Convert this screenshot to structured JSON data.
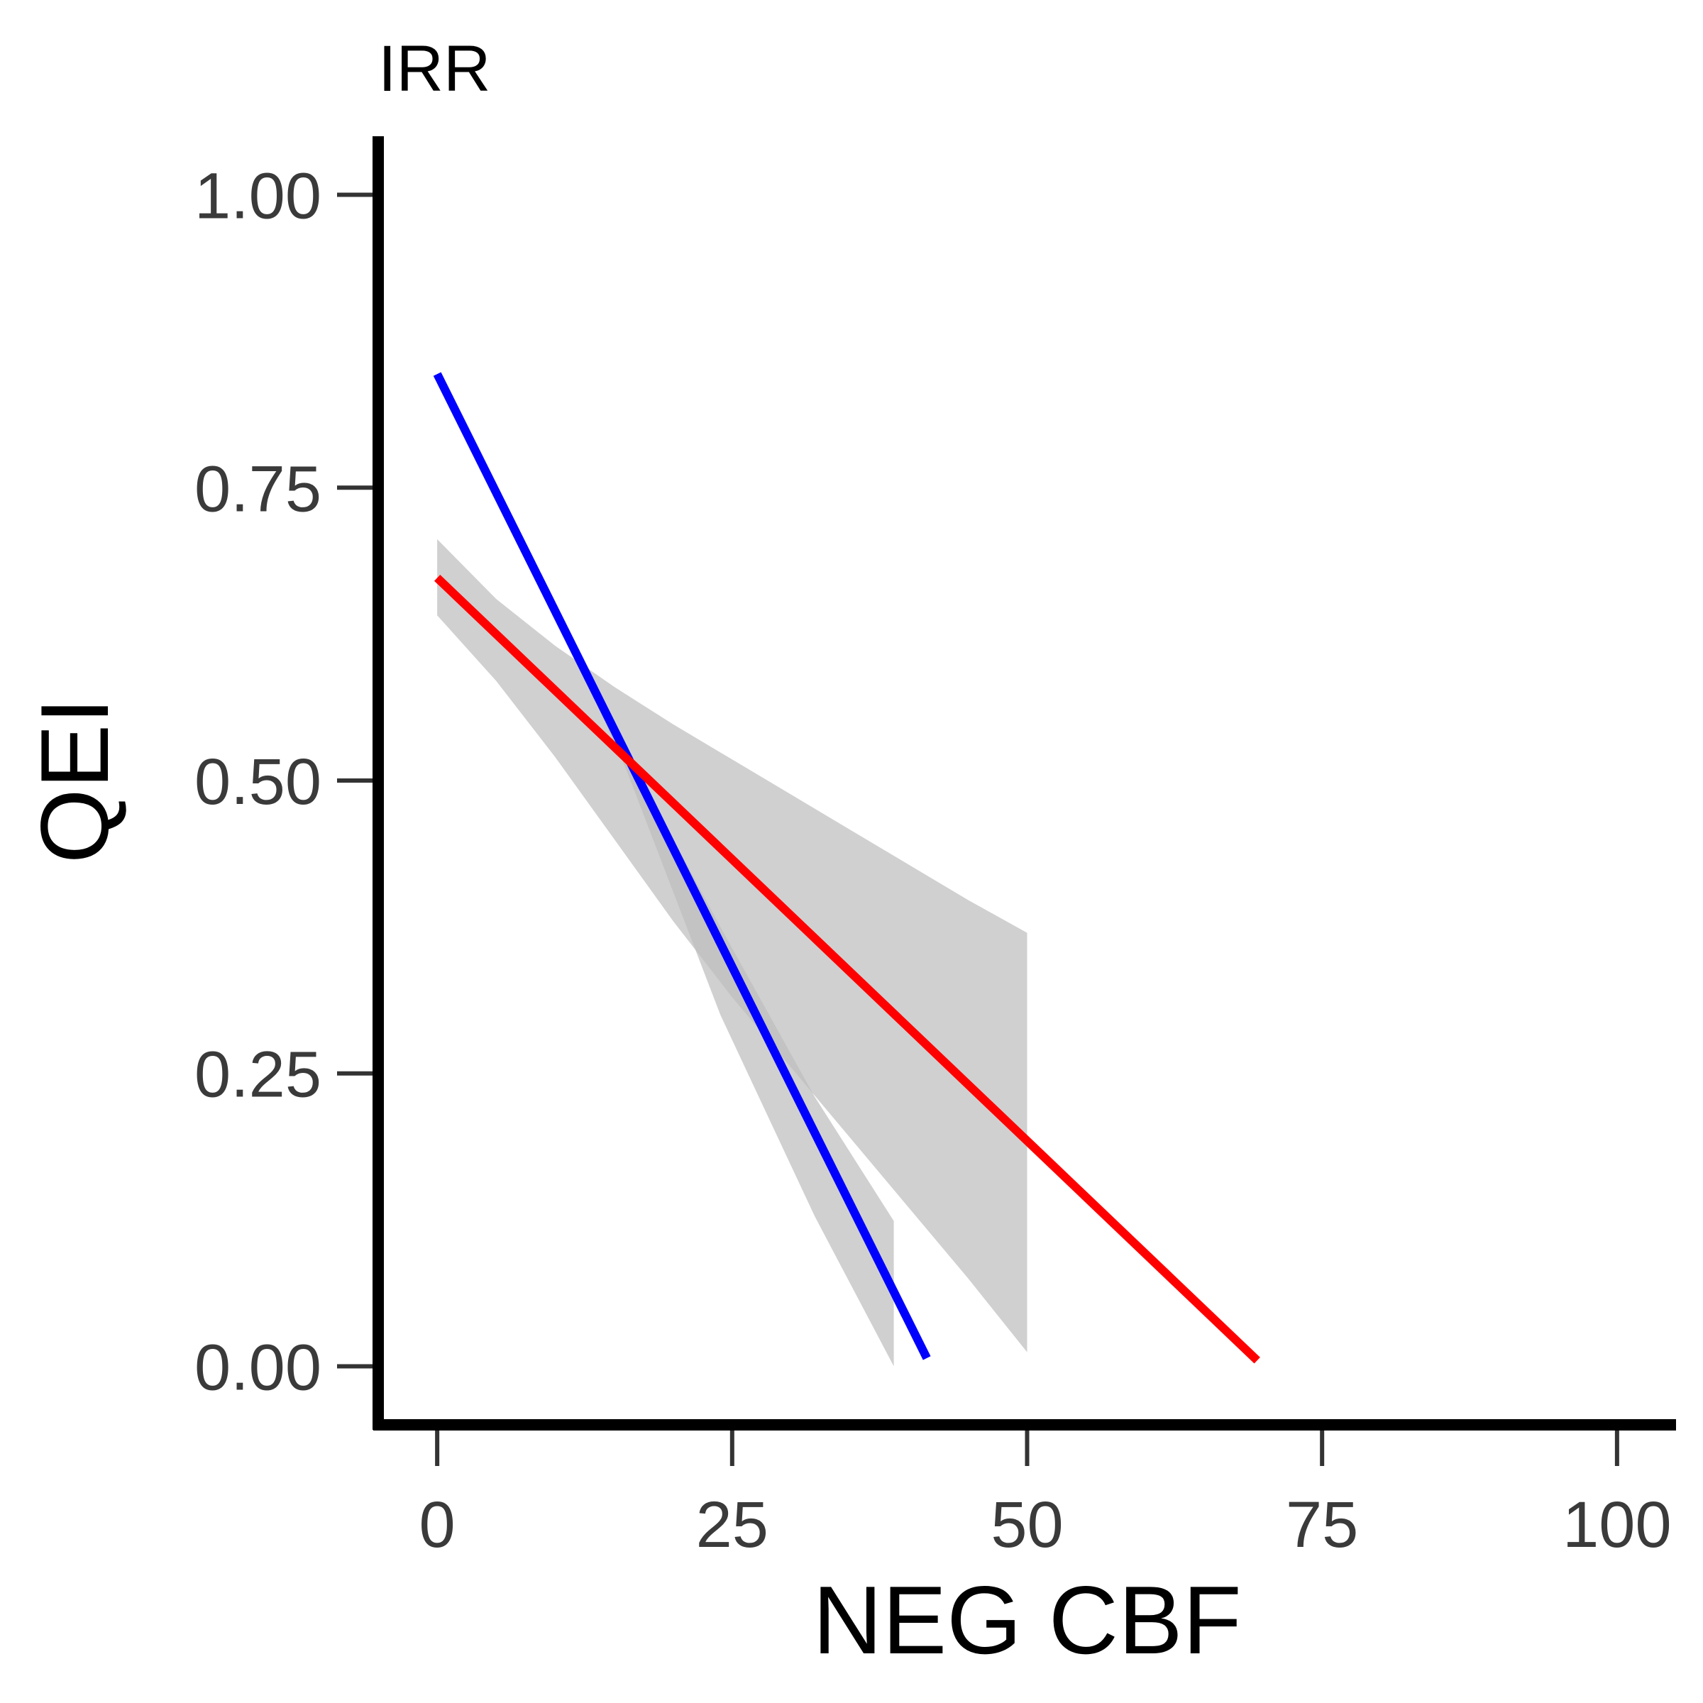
{
  "chart_data": {
    "type": "line",
    "title": "IRR",
    "xlabel": "NEG CBF",
    "ylabel": "QEI",
    "xlim": [
      -5,
      105
    ],
    "ylim": [
      -0.05,
      1.05
    ],
    "x_ticks": [
      0,
      25,
      50,
      75,
      100
    ],
    "x_tick_labels": [
      "0",
      "25",
      "50",
      "75",
      "100"
    ],
    "y_ticks": [
      0,
      0.25,
      0.5,
      0.75,
      1.0
    ],
    "y_tick_labels": [
      "0.00",
      "0.25",
      "0.50",
      "0.75",
      "1.00"
    ],
    "grid": false,
    "legend": "none",
    "series": [
      {
        "color": "#0000ff",
        "line": [
          [
            0,
            0.847
          ],
          [
            41.5,
            0.007
          ]
        ],
        "ci_band": {
          "color": "#bebebe",
          "x": [
            0,
            8,
            16,
            24,
            32,
            38.7
          ],
          "upper": [
            0.846,
            0.69,
            0.525,
            0.375,
            0.23,
            0.124
          ],
          "lower": [
            0.846,
            0.69,
            0.51,
            0.3,
            0.128,
            0.0
          ]
        }
      },
      {
        "color": "#ff0000",
        "line": [
          [
            0,
            0.673
          ],
          [
            69.5,
            0.005
          ]
        ],
        "ci_band": {
          "color": "#bebebe",
          "x": [
            0,
            5,
            10,
            15,
            20,
            25,
            30,
            35,
            40,
            45,
            50
          ],
          "upper": [
            0.706,
            0.655,
            0.615,
            0.58,
            0.548,
            0.518,
            0.488,
            0.458,
            0.428,
            0.398,
            0.37
          ],
          "lower": [
            0.641,
            0.585,
            0.52,
            0.45,
            0.38,
            0.315,
            0.255,
            0.195,
            0.135,
            0.075,
            0.012
          ]
        }
      }
    ]
  }
}
